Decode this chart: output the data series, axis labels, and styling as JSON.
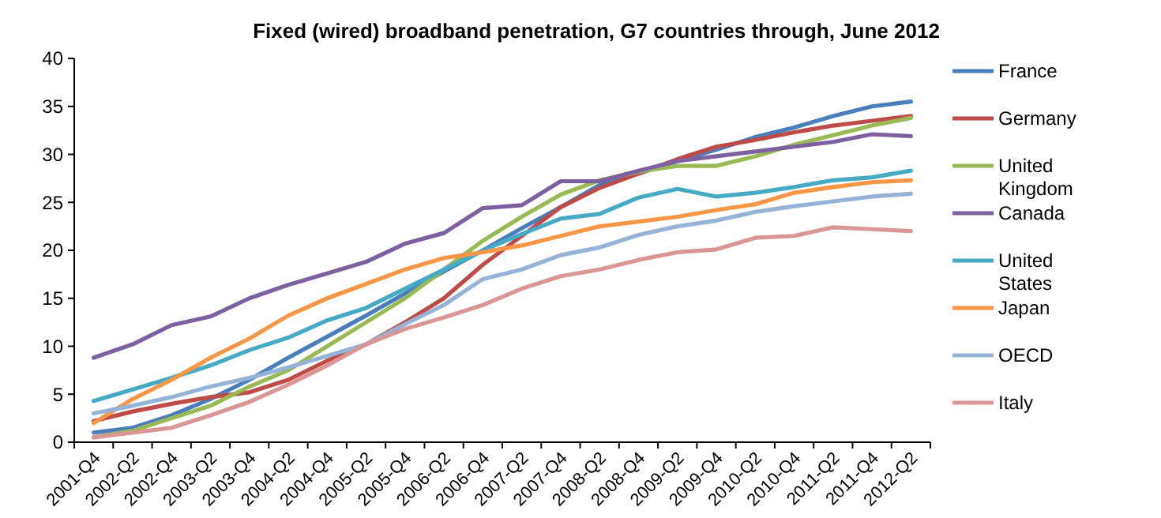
{
  "chart_data": {
    "type": "line",
    "title": "Fixed (wired) broadband penetration, G7 countries through, June 2012",
    "categories": [
      "2001-Q4",
      "2002-Q2",
      "2002-Q4",
      "2003-Q2",
      "2003-Q4",
      "2004-Q2",
      "2004-Q4",
      "2005-Q2",
      "2005-Q4",
      "2006-Q2",
      "2006-Q4",
      "2007-Q2",
      "2007-Q4",
      "2008-Q2",
      "2008-Q4",
      "2009-Q2",
      "2009-Q4",
      "2010-Q2",
      "2010-Q4",
      "2011-Q2",
      "2011-Q4",
      "2012-Q2"
    ],
    "ylim": [
      0,
      40
    ],
    "yticks": [
      0,
      5,
      10,
      15,
      20,
      25,
      30,
      35,
      40
    ],
    "grid": false,
    "legend": "right",
    "marker": "none",
    "line_style": "solid",
    "series": [
      {
        "name": "France",
        "color": "#4a7ebb",
        "values": [
          1.0,
          1.5,
          2.8,
          4.5,
          6.5,
          8.8,
          11,
          13.2,
          15.5,
          17.8,
          20,
          22.3,
          24.5,
          26.8,
          28,
          29.3,
          30.5,
          31.8,
          32.8,
          34,
          35,
          35.5
        ]
      },
      {
        "name": "Germany",
        "color": "#be4b48",
        "values": [
          2.2,
          3.2,
          4.0,
          4.7,
          5.2,
          6.5,
          8.5,
          10.2,
          12.5,
          15,
          18.5,
          21.5,
          24.5,
          26.5,
          28,
          29.5,
          30.8,
          31.5,
          32.3,
          33,
          33.5,
          34
        ]
      },
      {
        "name": "United Kingdom",
        "color": "#98b954",
        "values": [
          0.5,
          1.2,
          2.5,
          3.8,
          5.8,
          7.5,
          10,
          12.5,
          15,
          18,
          21,
          23.5,
          25.8,
          27.3,
          28.2,
          28.8,
          28.8,
          29.8,
          31,
          32,
          33,
          33.8
        ]
      },
      {
        "name": "Canada",
        "color": "#7d60a0",
        "values": [
          8.8,
          10.2,
          12.2,
          13.1,
          15,
          16.4,
          17.6,
          18.8,
          20.7,
          21.8,
          24.4,
          24.7,
          27.2,
          27.2,
          28.3,
          29.3,
          29.8,
          30.3,
          30.8,
          31.3,
          32.1,
          31.9
        ]
      },
      {
        "name": "United States",
        "color": "#46aac5",
        "values": [
          4.3,
          5.5,
          6.7,
          8.0,
          9.6,
          10.9,
          12.7,
          14.0,
          16.0,
          18.0,
          20.0,
          21.7,
          23.3,
          23.8,
          25.5,
          26.4,
          25.6,
          26.0,
          26.6,
          27.3,
          27.6,
          28.3
        ]
      },
      {
        "name": "Japan",
        "color": "#f79646",
        "values": [
          2.0,
          4.5,
          6.5,
          8.8,
          10.8,
          13.2,
          15,
          16.5,
          18,
          19.2,
          19.8,
          20.5,
          21.5,
          22.5,
          23,
          23.5,
          24.2,
          24.8,
          26,
          26.6,
          27.1,
          27.3
        ]
      },
      {
        "name": "OECD",
        "color": "#95b3d7",
        "values": [
          3.0,
          3.8,
          4.7,
          5.8,
          6.7,
          7.8,
          9.0,
          10.2,
          12.3,
          14.3,
          17,
          18,
          19.5,
          20.3,
          21.6,
          22.5,
          23.1,
          24.0,
          24.6,
          25.1,
          25.6,
          25.9
        ]
      },
      {
        "name": "Italy",
        "color": "#d99694",
        "values": [
          0.5,
          1.0,
          1.5,
          2.8,
          4.2,
          6.0,
          8.0,
          10.2,
          11.8,
          13.0,
          14.3,
          16,
          17.3,
          18.0,
          19.0,
          19.8,
          20.1,
          21.3,
          21.5,
          22.4,
          22.2,
          22.0
        ]
      }
    ]
  }
}
